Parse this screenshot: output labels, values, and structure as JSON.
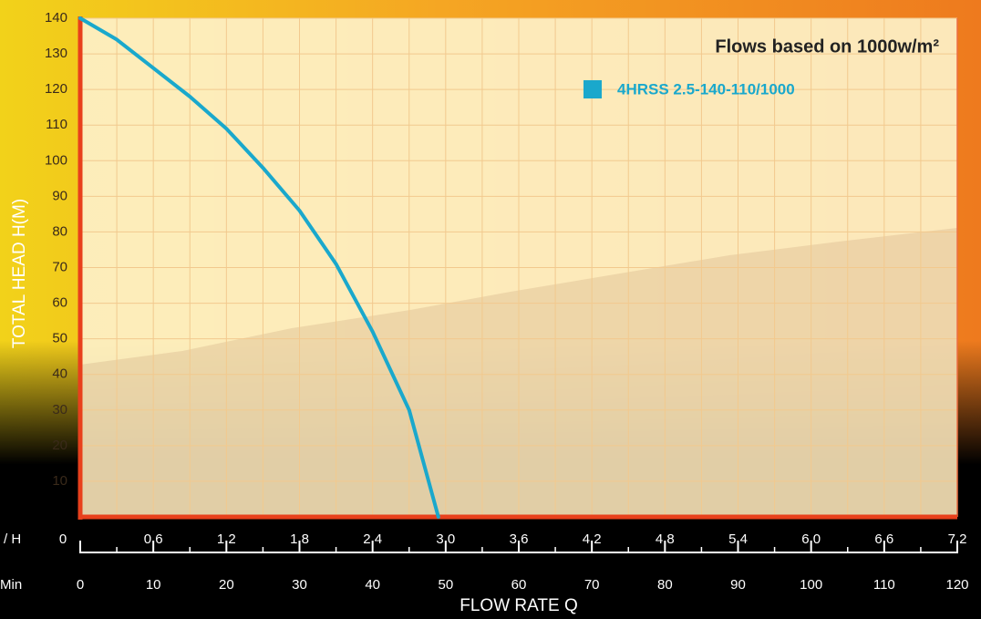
{
  "chart_data": {
    "type": "line",
    "legend_title": "Flows based on 1000w/m²",
    "ylabel": "TOTAL HEAD H(M)",
    "xlabel": "FLOW RATE Q",
    "xunit": "/ H",
    "x2unit": "Min",
    "x": [
      0,
      0.3,
      0.6,
      0.9,
      1.2,
      1.5,
      1.8,
      2.1,
      2.4,
      2.7,
      2.94
    ],
    "series": [
      {
        "name": "4HRSS 2.5-140-110/1000",
        "color": "#1aa8cc",
        "values": [
          140,
          134,
          126,
          118,
          109,
          98,
          86,
          71,
          52,
          30,
          0
        ]
      }
    ],
    "xlim": [
      0,
      7.2
    ],
    "xticks": [
      0,
      0.6,
      1.2,
      1.8,
      2.4,
      {
        "value": 3,
        "label": "3.0"
      },
      3.6,
      4.2,
      4.8,
      5.4,
      {
        "value": 6,
        "label": "6.0"
      },
      6.6,
      7.2
    ],
    "xminorticks": [
      0.3,
      0.9,
      1.5,
      2.1,
      2.7,
      3.3,
      3.9,
      4.5,
      5.1,
      5.7,
      6.3,
      6.9
    ],
    "x2lim": [
      0,
      120
    ],
    "x2ticks": [
      0,
      10,
      20,
      30,
      40,
      50,
      60,
      70,
      80,
      90,
      100,
      110,
      120
    ],
    "x2minorticks": [
      5,
      15,
      25,
      35,
      45,
      55,
      65,
      75,
      85,
      95,
      105,
      115
    ],
    "ylim": [
      0,
      140
    ],
    "yticks": [
      10,
      20,
      30,
      40,
      50,
      60,
      70,
      80,
      90,
      100,
      110,
      120,
      130,
      140
    ],
    "grid": true,
    "axis_color": "#e8401c"
  }
}
